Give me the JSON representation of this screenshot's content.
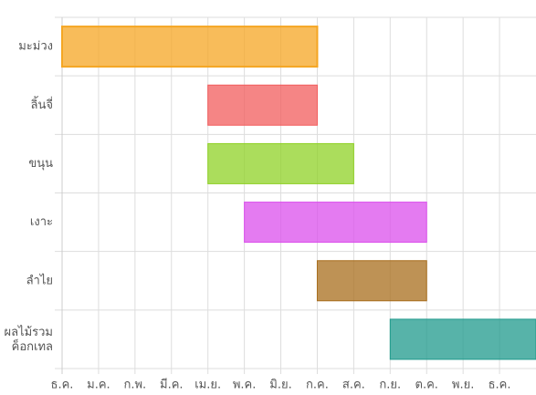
{
  "chart_data": {
    "type": "floating-bar",
    "orientation": "horizontal",
    "categories": [
      "มะม่วง",
      "ลิ้นจี่",
      "ขนุน",
      "เงาะ",
      "ลำไย",
      [
        "ผลไม้รวม",
        "ค็อกเทล"
      ]
    ],
    "start": [
      0,
      4,
      4,
      5,
      7,
      9
    ],
    "end": [
      7,
      7,
      8,
      10,
      10,
      13
    ],
    "colors": [
      "#f5a623",
      "#f25c5c",
      "#8fd126",
      "#db4fec",
      "#a86d1c",
      "#1f9a8c"
    ],
    "xlim": [
      0,
      13
    ],
    "xticks": [
      {
        "value": 0,
        "label": "ธ.ค."
      },
      {
        "value": 1,
        "label": "ม.ค."
      },
      {
        "value": 2,
        "label": "ก.พ."
      },
      {
        "value": 3,
        "label": "มี.ค."
      },
      {
        "value": 4,
        "label": "เม.ย."
      },
      {
        "value": 5,
        "label": "พ.ค."
      },
      {
        "value": 6,
        "label": "มิ.ย."
      },
      {
        "value": 7,
        "label": "ก.ค."
      },
      {
        "value": 8,
        "label": "ส.ค."
      },
      {
        "value": 9,
        "label": "ก.ย."
      },
      {
        "value": 10,
        "label": "ต.ค."
      },
      {
        "value": 11,
        "label": "พ.ย."
      },
      {
        "value": 12,
        "label": "ธ.ค."
      }
    ],
    "grid": true
  }
}
